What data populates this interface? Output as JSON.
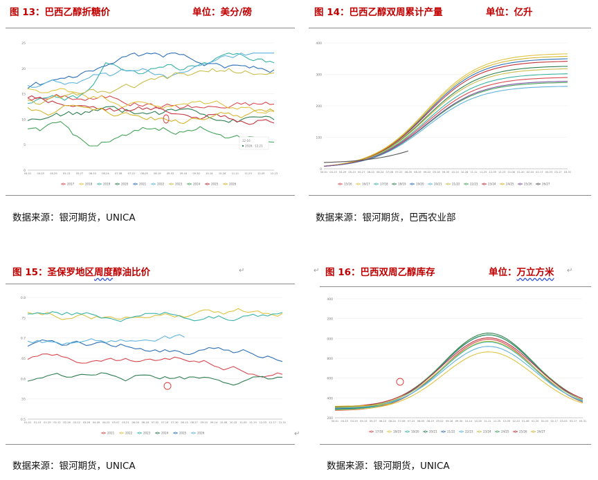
{
  "charts": [
    {
      "title": "图 13：巴西乙醇折糖价",
      "unit": "单位：美分/磅",
      "source": "数据来源：银河期货，UNICA",
      "y_ticks": [
        "25",
        "20",
        "15",
        "10",
        "5",
        "0"
      ],
      "x_ticks": [
        "04-01",
        "04-15",
        "04-29",
        "05-13",
        "05-27",
        "06-10",
        "06-24",
        "07-08",
        "07-22",
        "08-05",
        "08-19",
        "09-02",
        "09-16",
        "09-30",
        "10-14",
        "10-28",
        "11-11",
        "11-25",
        "12-09",
        "12-23"
      ],
      "legend": [
        "2017",
        "2018",
        "2019",
        "2020",
        "2021",
        "2022",
        "2023",
        "2024",
        "2025",
        "2026"
      ],
      "tooltip": [
        "12-16",
        "2026：12.21"
      ],
      "colors": [
        "#d9484f",
        "#e0c341",
        "#38b3a6",
        "#2e7d4f",
        "#2d6fb6",
        "#5fb3dc",
        "#c9bd4a",
        "#45a358",
        "#c4303a",
        "#d2b52d"
      ]
    },
    {
      "title": "图 14：巴西乙醇双周累计产量",
      "unit": "单位：亿升",
      "source": "数据来源：银河期货，巴西农业部",
      "y_ticks": [
        "400",
        "300",
        "200",
        "100",
        "0"
      ],
      "x_ticks": [
        "04-01",
        "04-15",
        "04-29",
        "05-13",
        "05-27",
        "06-10",
        "06-24",
        "07-08",
        "07-22",
        "08-05",
        "08-19",
        "09-02",
        "09-16",
        "09-30",
        "10-14",
        "10-28",
        "11-11",
        "11-25",
        "12-09",
        "12-23",
        "01-06",
        "01-20",
        "02-03",
        "02-17",
        "03-03",
        "03-17",
        "03-31"
      ],
      "legend": [
        "15/16",
        "16/17",
        "17/18",
        "18/19",
        "19/20",
        "20/21",
        "21/22",
        "22/23",
        "23/24",
        "24/25",
        "25/26",
        "26/27"
      ],
      "colors": [
        "#d9484f",
        "#e0c341",
        "#38b3a6",
        "#2e7d4f",
        "#2d6fb6",
        "#5fb3dc",
        "#c9bd4a",
        "#45a358",
        "#c4303a",
        "#d2b52d",
        "#7a4fa3",
        "#555555"
      ]
    },
    {
      "title": "图 15：圣保罗地区周度醇油比价",
      "unit": "",
      "source": "数据来源：银河期货，UNICA",
      "y_ticks": [
        "0.8",
        "0.75",
        "0.7",
        "0.65",
        "0.6",
        "0.55",
        "0.5"
      ],
      "x_ticks": [
        "01-01",
        "01-15",
        "01-29",
        "02-12",
        "02-26",
        "03-12",
        "03-26",
        "04-09",
        "04-23",
        "05-07",
        "05-21",
        "06-04",
        "06-18",
        "07-02",
        "07-16",
        "07-30",
        "08-13",
        "08-27",
        "09-10",
        "09-24",
        "10-08",
        "10-22",
        "11-05",
        "11-19",
        "12-03",
        "12-17",
        "12-31"
      ],
      "legend": [
        "2021",
        "2022",
        "2023",
        "2024",
        "2025",
        "2026"
      ],
      "colors": [
        "#d9484f",
        "#e0c341",
        "#38b3a6",
        "#2e7d4f",
        "#2d6fb6",
        "#5fb3dc"
      ]
    },
    {
      "title": "图 16：巴西双周乙醇库存",
      "unit": "单位：万立方米",
      "source": "数据来源：银河期货，UNICA",
      "y_ticks": [
        "1400",
        "1200",
        "1000",
        "800",
        "600",
        "400",
        "200"
      ],
      "x_ticks": [
        "04-01",
        "04-15",
        "04-29",
        "05-13",
        "05-27",
        "06-10",
        "06-24",
        "07-08",
        "07-22",
        "08-05",
        "08-19",
        "09-02",
        "09-16",
        "09-30",
        "10-14",
        "10-28",
        "11-11",
        "11-25",
        "12-09",
        "12-23",
        "01-06",
        "01-20",
        "02-03",
        "02-17",
        "03-03",
        "03-17",
        "03-31"
      ],
      "legend": [
        "17/18",
        "18/19",
        "19/20",
        "20/21",
        "21/22",
        "22/23",
        "23/24",
        "24/25",
        "25/26",
        "26/27"
      ],
      "colors": [
        "#d9484f",
        "#e0c341",
        "#38b3a6",
        "#2e7d4f",
        "#2d6fb6",
        "#5fb3dc",
        "#c9bd4a",
        "#45a358",
        "#c4303a",
        "#d2b52d"
      ]
    }
  ]
}
